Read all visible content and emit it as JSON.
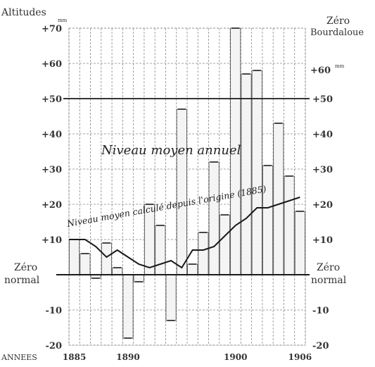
{
  "chart_data": {
    "type": "line",
    "left_axis_title": "Altitudes",
    "left_axis_unit": "mm",
    "right_axis_title_line1": "Zéro",
    "right_axis_title_line2": "Bourdaloue",
    "right_axis_unit_label": "+60",
    "right_axis_unit_sup": "mm",
    "zero_label_left_line1": "Zéro",
    "zero_label_left_line2": "normal",
    "zero_label_right_line1": "Zéro",
    "zero_label_right_line2": "normal",
    "xlabel": "ANNEES",
    "ylim": [
      -20,
      70
    ],
    "y_ticks_left": [
      "+70",
      "+60",
      "+50",
      "+40",
      "+30",
      "+20",
      "+10",
      "-10",
      "-20"
    ],
    "y_ticks_right": [
      "+50",
      "+40",
      "+30",
      "+20",
      "+10",
      "-10",
      "-20"
    ],
    "y_tick_values_left": [
      70,
      60,
      50,
      40,
      30,
      20,
      10,
      -10,
      -20
    ],
    "y_tick_values_right": [
      50,
      40,
      30,
      20,
      10,
      -10,
      -20
    ],
    "x_ticks": [
      "1885",
      "1890",
      "1900",
      "1906"
    ],
    "x_tick_values": [
      1885,
      1890,
      1900,
      1906
    ],
    "annual_label": "Niveau moyen annuel",
    "cumulative_label": "Niveau moyen calculé depuis l'origine (1885)",
    "years": [
      1885,
      1886,
      1887,
      1888,
      1889,
      1890,
      1891,
      1892,
      1893,
      1894,
      1895,
      1896,
      1897,
      1898,
      1899,
      1900,
      1901,
      1902,
      1903,
      1904,
      1905,
      1906
    ],
    "annual_values": [
      10,
      6,
      -1,
      9,
      2,
      -18,
      -2,
      20,
      14,
      -13,
      47,
      3,
      12,
      32,
      17,
      70,
      57,
      58,
      31,
      43,
      28,
      18
    ],
    "cumulative_values": [
      10,
      10,
      8,
      5,
      7,
      5,
      3,
      2,
      3,
      4,
      2,
      7,
      7,
      8,
      11,
      14,
      16,
      19,
      19,
      20,
      21,
      22
    ],
    "series": [
      {
        "name": "Niveau moyen annuel",
        "kind": "step"
      },
      {
        "name": "Niveau moyen calculé depuis l'origine (1885)",
        "kind": "line"
      }
    ],
    "colors": {
      "ink": "#1a1a1a",
      "grid": "#888888",
      "fill": "#f4f4f4"
    }
  }
}
